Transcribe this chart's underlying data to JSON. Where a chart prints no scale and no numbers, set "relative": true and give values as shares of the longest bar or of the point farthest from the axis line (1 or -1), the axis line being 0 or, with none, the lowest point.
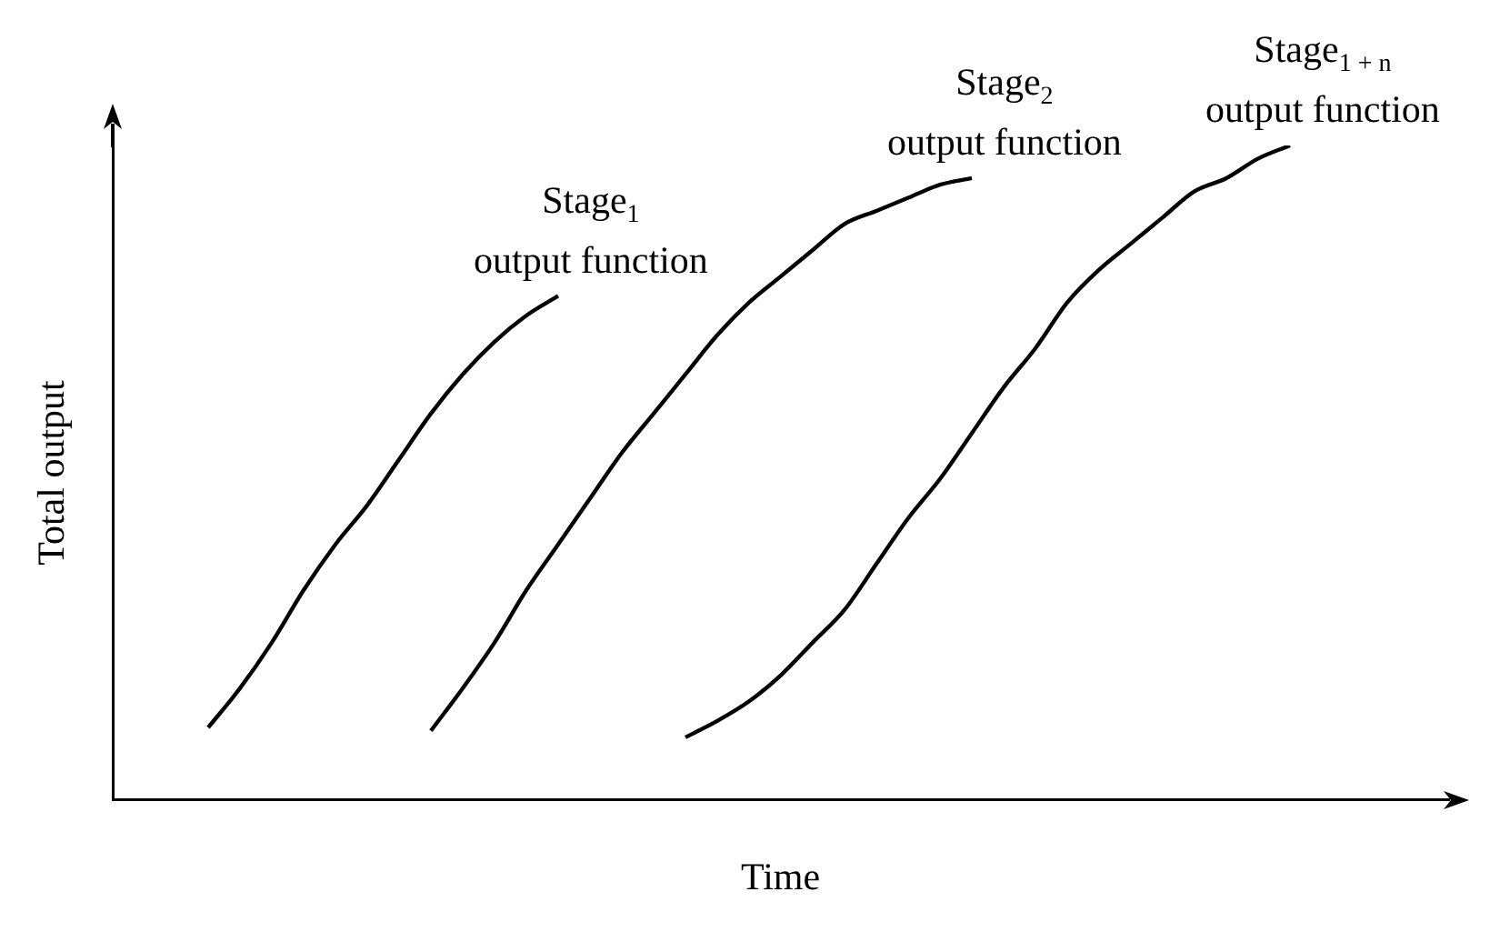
{
  "chart_data": {
    "type": "line",
    "relative": true,
    "xlabel": "Time",
    "ylabel": "Total output",
    "grid": false,
    "legend": false,
    "marker": "none",
    "line_style": "solid",
    "categories": [
      null,
      null,
      null,
      null,
      null,
      null,
      null,
      null,
      null,
      null,
      null,
      null,
      null,
      null,
      null,
      null,
      null,
      null,
      null,
      null,
      null,
      null,
      null,
      null,
      null,
      null,
      null,
      null,
      null,
      null,
      null,
      null,
      null,
      null,
      null,
      null,
      null,
      null,
      null,
      null,
      null,
      null,
      null
    ],
    "series": [
      {
        "name": "Stage$_{1}$ output function",
        "color": "#000000",
        "values": [
          null,
          null,
          null,
          0.11,
          0.17,
          0.24,
          0.32,
          0.39,
          0.45,
          0.52,
          0.59,
          0.65,
          0.7,
          0.74,
          0.77,
          null,
          null,
          null,
          null,
          null,
          null,
          null,
          null,
          null,
          null,
          null,
          null,
          null,
          null,
          null,
          null,
          null,
          null,
          null,
          null,
          null,
          null,
          null,
          null,
          null,
          null,
          null,
          null
        ]
      },
      {
        "name": "Stage$_{2}$ output function",
        "color": "#000000",
        "values": [
          null,
          null,
          null,
          null,
          null,
          null,
          null,
          null,
          null,
          null,
          0.105,
          0.17,
          0.24,
          0.32,
          0.39,
          0.46,
          0.53,
          0.59,
          0.65,
          0.71,
          0.76,
          0.8,
          0.84,
          0.88,
          0.9,
          0.92,
          0.94,
          0.95,
          null,
          null,
          null,
          null,
          null,
          null,
          null,
          null,
          null,
          null,
          null,
          null,
          null,
          null,
          null
        ]
      },
      {
        "name": "Stage$_{1 + n}$ output function",
        "color": "#000000",
        "values": [
          null,
          null,
          null,
          null,
          null,
          null,
          null,
          null,
          null,
          null,
          null,
          null,
          null,
          null,
          null,
          null,
          null,
          null,
          0.095,
          0.12,
          0.15,
          0.19,
          0.24,
          0.29,
          0.36,
          0.43,
          0.49,
          0.56,
          0.63,
          0.69,
          0.76,
          0.81,
          0.85,
          0.89,
          0.93,
          0.95,
          0.98,
          1,
          null,
          null,
          null,
          null,
          null
        ]
      }
    ]
  }
}
